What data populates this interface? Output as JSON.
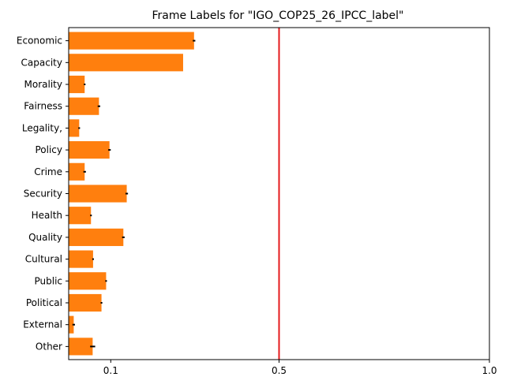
{
  "chart_data": {
    "type": "bar",
    "orientation": "horizontal",
    "title": "Frame Labels for \"IGO_COP25_26_IPCC_label\"",
    "xlabel": "",
    "ylabel": "",
    "xlim": [
      0.0,
      1.0
    ],
    "xticks": [
      0.1,
      0.5,
      1.0
    ],
    "xtick_labels": [
      "0.1",
      "0.5",
      "1.0"
    ],
    "reference_line": {
      "x": 0.5,
      "color": "#e41a1c"
    },
    "bar_color": "#ff7f0e",
    "error_color": "#000000",
    "grid": false,
    "categories": [
      "Economic",
      "Capacity",
      "Morality",
      "Fairness",
      "Legality,",
      "Policy",
      "Crime",
      "Security",
      "Health",
      "Quality",
      "Cultural",
      "Public",
      "Political",
      "External",
      "Other"
    ],
    "values": [
      0.298,
      0.272,
      0.038,
      0.072,
      0.025,
      0.097,
      0.038,
      0.138,
      0.053,
      0.13,
      0.058,
      0.089,
      0.078,
      0.012,
      0.057
    ],
    "errors": [
      0.003,
      0.0,
      0.002,
      0.003,
      0.002,
      0.003,
      0.003,
      0.003,
      0.002,
      0.003,
      0.002,
      0.002,
      0.002,
      0.003,
      0.006
    ]
  }
}
